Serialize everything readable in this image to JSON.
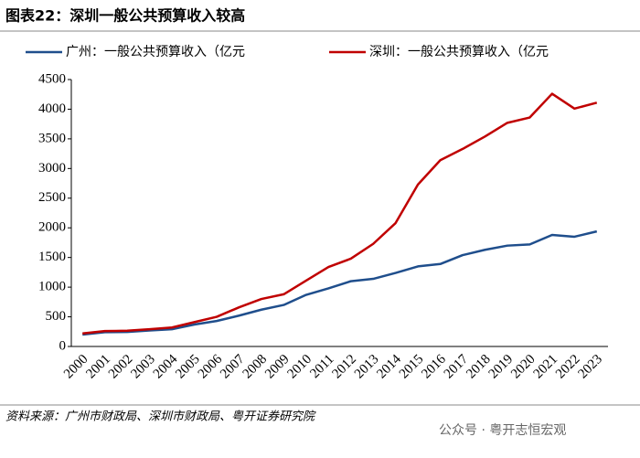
{
  "chart_data": {
    "type": "line",
    "title": "图表22：深圳一般公共预算收入较高",
    "categories": [
      "2000",
      "2001",
      "2002",
      "2003",
      "2004",
      "2005",
      "2006",
      "2007",
      "2008",
      "2009",
      "2010",
      "2011",
      "2012",
      "2013",
      "2014",
      "2015",
      "2016",
      "2017",
      "2018",
      "2019",
      "2020",
      "2021",
      "2022",
      "2023"
    ],
    "series": [
      {
        "name": "广州：一般公共预算收入（亿元",
        "color": "#1f4e8c",
        "values": [
          200,
          240,
          245,
          270,
          290,
          370,
          430,
          520,
          620,
          700,
          870,
          980,
          1100,
          1140,
          1240,
          1350,
          1390,
          1540,
          1630,
          1700,
          1720,
          1880,
          1850,
          1940
        ]
      },
      {
        "name": "深圳：一般公共预算收入（亿元",
        "color": "#c00000",
        "values": [
          220,
          260,
          265,
          290,
          320,
          410,
          500,
          660,
          800,
          880,
          1110,
          1340,
          1480,
          1730,
          2080,
          2730,
          3140,
          3330,
          3540,
          3770,
          3860,
          4260,
          4010,
          4110
        ]
      }
    ],
    "ylim": [
      0,
      4500
    ],
    "yticks": [
      0,
      500,
      1000,
      1500,
      2000,
      2500,
      3000,
      3500,
      4000,
      4500
    ],
    "source": "资料来源：广州市财政局、深圳市财政局、粤开证券研究院",
    "watermark": "公众号 · 粤开志恒宏观"
  }
}
